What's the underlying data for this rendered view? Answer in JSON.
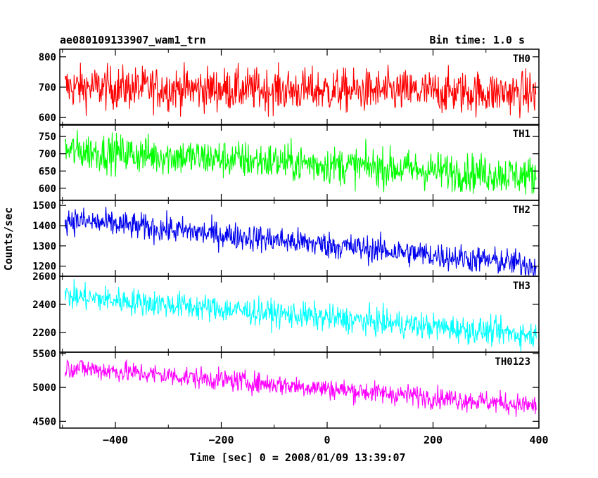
{
  "chart_data": {
    "type": "line",
    "title_left": "ae080109133907_wam1_trn",
    "title_right": "Bin time: 1.0 s",
    "xlabel": "Time [sec] 0 = 2008/01/09 13:39:07",
    "ylabel": "Counts/sec",
    "xlim": [
      -505,
      400
    ],
    "xticks": [
      -400,
      -200,
      0,
      200,
      400
    ],
    "xtick_labels": [
      "−400",
      "−200",
      "0",
      "200",
      "400"
    ],
    "x_start": -495,
    "x_end": 395,
    "bin": 1.0,
    "grid": false,
    "panels": [
      {
        "name": "TH0",
        "color": "#ff0000",
        "ylim": [
          575,
          825
        ],
        "yticks": [
          600,
          700,
          800
        ],
        "ytick_labels": [
          "600",
          "700",
          "800"
        ],
        "trend_start": 700,
        "trend_end": 680,
        "noise": 36
      },
      {
        "name": "TH1",
        "color": "#00ff00",
        "ylim": [
          565,
          785
        ],
        "yticks": [
          600,
          650,
          700,
          750
        ],
        "ytick_labels": [
          "600",
          "650",
          "700",
          "750"
        ],
        "trend_start": 710,
        "trend_end": 635,
        "noise": 28
      },
      {
        "name": "TH2",
        "color": "#0000ee",
        "ylim": [
          1150,
          1525
        ],
        "yticks": [
          1200,
          1300,
          1400,
          1500
        ],
        "ytick_labels": [
          "1200",
          "1300",
          "1400",
          "1500"
        ],
        "trend_start": 1430,
        "trend_end": 1205,
        "noise": 34
      },
      {
        "name": "TH3",
        "color": "#00ffff",
        "ylim": [
          2060,
          2600
        ],
        "yticks": [
          2200,
          2400,
          2600
        ],
        "ytick_labels": [
          "2200",
          "2400",
          "2600"
        ],
        "trend_start": 2460,
        "trend_end": 2180,
        "noise": 48
      },
      {
        "name": "TH0123",
        "color": "#ff00ff",
        "ylim": [
          4400,
          5520
        ],
        "yticks": [
          4500,
          5000,
          5500
        ],
        "ytick_labels": [
          "4500",
          "5000",
          "5500"
        ],
        "trend_start": 5300,
        "trend_end": 4730,
        "noise": 80
      }
    ]
  }
}
